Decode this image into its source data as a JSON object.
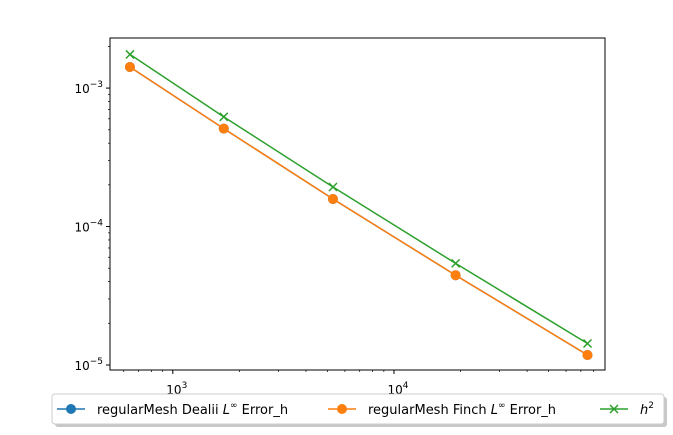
{
  "chart_data": {
    "type": "line",
    "x_scale": "log",
    "y_scale": "log",
    "xlim": [
      520,
      90000
    ],
    "ylim": [
      9.2e-06,
      0.0023
    ],
    "x_ticks": [
      {
        "value": 1000,
        "base": "10",
        "exp": "3"
      },
      {
        "value": 10000,
        "base": "10",
        "exp": "4"
      }
    ],
    "y_ticks": [
      {
        "value": 0.001,
        "base": "10",
        "exp": "−3"
      },
      {
        "value": 0.0001,
        "base": "10",
        "exp": "−4"
      },
      {
        "value": 1e-05,
        "base": "10",
        "exp": "−5"
      }
    ],
    "grid": false,
    "legend_position": "bottom",
    "series": [
      {
        "name": "regularMesh Dealii L∞ Error_h",
        "label_pre": "regularMesh Dealii ",
        "label_math": "L",
        "label_sup": "∞",
        "label_post": " Error_h",
        "color": "#1f77b4",
        "marker": "circle",
        "x": [
          640,
          1700,
          5300,
          19000,
          75000
        ],
        "y": [
          0.00142,
          0.00051,
          0.000158,
          4.45e-05,
          1.18e-05
        ]
      },
      {
        "name": "regularMesh Finch L∞ Error_h",
        "label_pre": "regularMesh Finch ",
        "label_math": "L",
        "label_sup": "∞",
        "label_post": " Error_h",
        "color": "#ff7f0e",
        "marker": "circle",
        "x": [
          640,
          1700,
          5300,
          19000,
          75000
        ],
        "y": [
          0.00142,
          0.00051,
          0.000158,
          4.45e-05,
          1.18e-05
        ]
      },
      {
        "name": "h^2",
        "label_pre": "",
        "label_math": "h",
        "label_sup": "2",
        "label_post": "",
        "color": "#2ca02c",
        "marker": "x",
        "x": [
          640,
          1700,
          5300,
          19000,
          75000
        ],
        "y": [
          0.00175,
          0.00062,
          0.000193,
          5.42e-05,
          1.43e-05
        ]
      }
    ]
  }
}
